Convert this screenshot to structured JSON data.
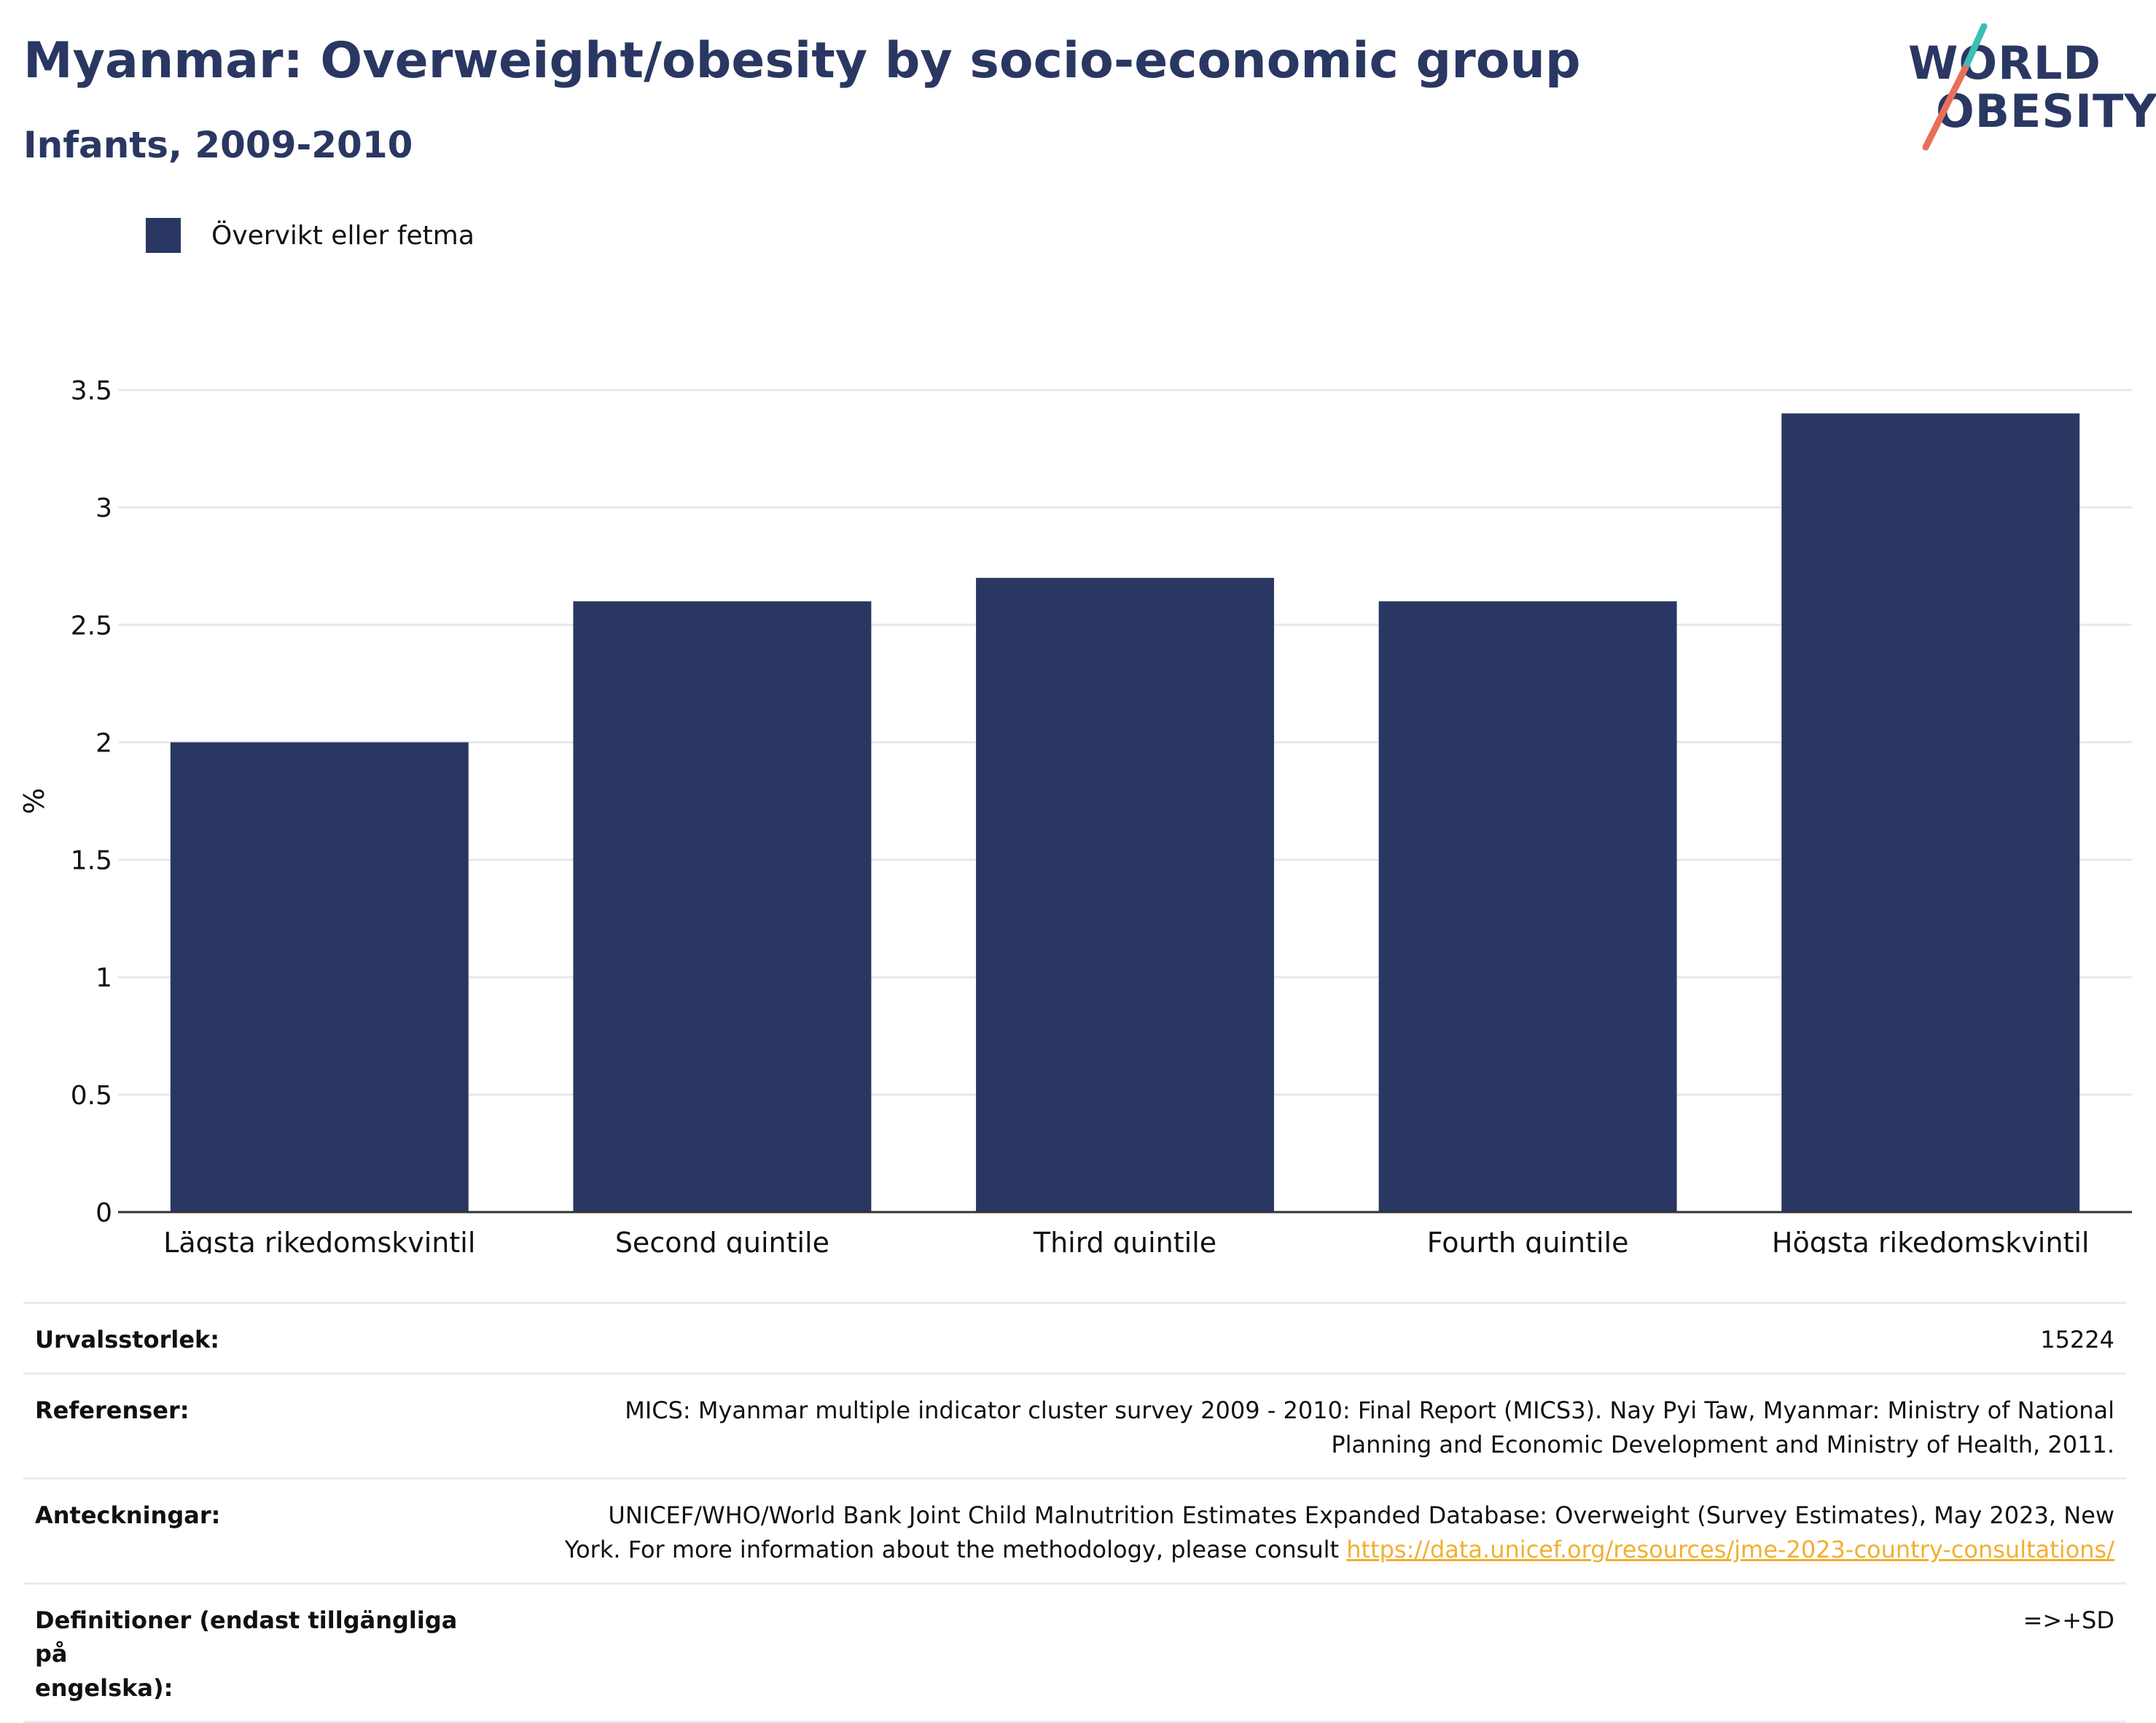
{
  "title": "Myanmar: Overweight/obesity by socio-economic group",
  "subtitle": "Infants, 2009-2010",
  "logo": {
    "line1": "WORLD",
    "line2": "OBESITY",
    "accent_teal": "#3bbfb5",
    "accent_red": "#e8705a"
  },
  "legend": [
    {
      "label": "Övervikt eller fetma",
      "color": "#2a3762"
    }
  ],
  "chart_data": {
    "type": "bar",
    "categories": [
      "Lägsta rikedomskvintil",
      "Second quintile",
      "Third quintile",
      "Fourth quintile",
      "Högsta rikedomskvintil"
    ],
    "series": [
      {
        "name": "Övervikt eller fetma",
        "values": [
          2.0,
          2.6,
          2.7,
          2.6,
          3.4
        ],
        "color": "#2a3762"
      }
    ],
    "ylabel": "%",
    "ylim": [
      0,
      3.5
    ],
    "yticks": [
      0,
      0.5,
      1,
      1.5,
      2,
      2.5,
      3,
      3.5
    ],
    "ytick_labels": [
      "0",
      "0.5",
      "1",
      "1.5",
      "2",
      "2.5",
      "3",
      "3.5"
    ],
    "grid": true,
    "legend_position": "top-left"
  },
  "info": {
    "sample_size": {
      "label": "Urvalsstorlek:",
      "value": "15224"
    },
    "references": {
      "label": "Referenser:",
      "line1": "MICS: Myanmar multiple indicator cluster survey 2009 - 2010: Final Report (MICS3). Nay Pyi Taw, Myanmar: Ministry of National",
      "line2": "Planning and Economic Development and Ministry of Health, 2011."
    },
    "notes": {
      "label": "Anteckningar:",
      "line1": "UNICEF/WHO/World Bank Joint Child Malnutrition Estimates Expanded Database: Overweight (Survey Estimates), May 2023, New",
      "line2": "York. For more information about the methodology, please consult ",
      "link": "https://data.unicef.org/resources/jme-2023-country-consultations/"
    },
    "definitions": {
      "label_line1": "Definitioner (endast tillgängliga på",
      "label_line2": "engelska):",
      "value": "=>+SD"
    }
  }
}
